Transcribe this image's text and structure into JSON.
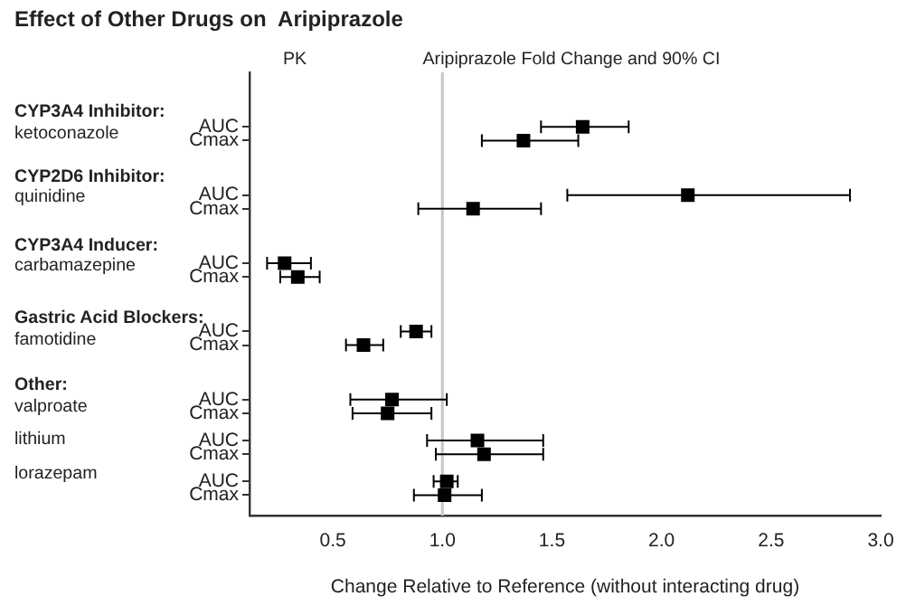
{
  "chart_data": {
    "type": "scatter",
    "orientation": "horizontal",
    "title": "Effect of Other Drugs on  Aripiprazole",
    "xlabel": "Change Relative to Reference (without interacting drug)",
    "annotations": [
      "PK",
      "Aripiprazole Fold Change and 90% CI",
      "CYP3A4 Inhibitor:",
      "ketoconazole",
      "CYP2D6 Inhibitor:",
      "quinidine",
      "CYP3A4 Inducer:",
      "carbamazepine",
      "Gastric Acid Blockers:",
      "famotidine",
      "Other:",
      "valproate",
      "lithium",
      "lorazepam"
    ],
    "categories": [
      "AUC",
      "Cmax",
      null,
      null,
      null,
      "AUC",
      "Cmax",
      null,
      null,
      null,
      "AUC",
      "Cmax",
      null,
      null,
      null,
      "AUC",
      "Cmax",
      null,
      null,
      null,
      "AUC",
      "Cmax",
      null,
      "AUC",
      "Cmax",
      null,
      "AUC",
      "Cmax"
    ],
    "series": [
      {
        "color": "#000000",
        "values": [
          1.64,
          1.37,
          null,
          null,
          null,
          2.12,
          1.14,
          null,
          null,
          null,
          0.28,
          0.34,
          null,
          null,
          null,
          0.88,
          0.64,
          null,
          null,
          null,
          0.77,
          0.75,
          null,
          1.16,
          1.19,
          null,
          1.02,
          1.01
        ],
        "errors": [
          [
            1.45,
            1.85
          ],
          [
            1.18,
            1.62
          ],
          null,
          null,
          null,
          [
            1.57,
            2.86
          ],
          [
            0.89,
            1.45
          ],
          null,
          null,
          null,
          [
            0.2,
            0.4
          ],
          [
            0.26,
            0.44
          ],
          null,
          null,
          null,
          [
            0.81,
            0.95
          ],
          [
            0.56,
            0.73
          ],
          null,
          null,
          null,
          [
            0.58,
            1.02
          ],
          [
            0.59,
            0.95
          ],
          null,
          [
            0.93,
            1.46
          ],
          [
            0.97,
            1.46
          ],
          null,
          [
            0.96,
            1.07
          ],
          [
            0.87,
            1.18
          ]
        ]
      }
    ],
    "xlim": [
      0.12,
      3.0
    ],
    "xticks": [
      {
        "value": 0.5,
        "label": "0.5"
      },
      {
        "value": 1,
        "label": "1.0"
      },
      {
        "value": 1.5,
        "label": "1.5"
      },
      {
        "value": 2,
        "label": "2.0"
      },
      {
        "value": 2.5,
        "label": "2.5"
      },
      {
        "value": 3,
        "label": "3.0"
      }
    ],
    "ref_lines": [
      {
        "axis": "x",
        "value": 1,
        "color": "#c8c8c8"
      }
    ],
    "marker": "square",
    "grid": false,
    "legend": false
  }
}
